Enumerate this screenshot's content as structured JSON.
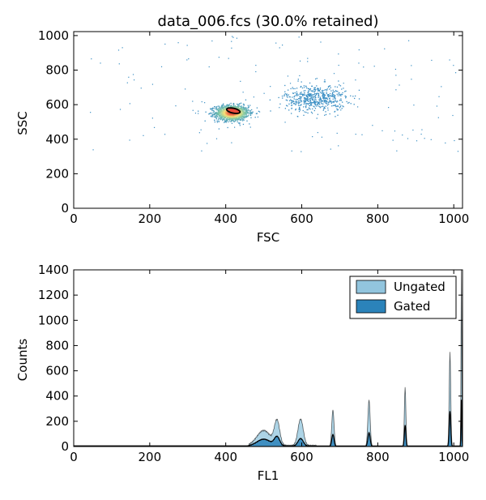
{
  "colors": {
    "scatter_points": "#3b8fc4",
    "density_high": "#e84a3a",
    "density_mid": "#f8e27a",
    "density_low": "#7ec8a4",
    "ungated_fill": "#92c5de",
    "gated_fill": "#2b83ba",
    "gate_outline": "#000000"
  },
  "chart_data": [
    {
      "type": "scatter",
      "title": "data_006.fcs (30.0% retained)",
      "xlabel": "FSC",
      "ylabel": "SSC",
      "xlim": [
        0,
        1023
      ],
      "ylim": [
        0,
        1023
      ],
      "xticks": [
        0,
        200,
        400,
        600,
        800,
        1000
      ],
      "yticks": [
        0,
        200,
        400,
        600,
        800,
        1000
      ],
      "grid": false,
      "clusters": [
        {
          "center_x": 415,
          "center_y": 555,
          "spread_x": 22,
          "spread_y": 22,
          "points": 1400,
          "colored_by": "density"
        },
        {
          "center_x": 635,
          "center_y": 640,
          "spread_x": 40,
          "spread_y": 40,
          "points": 550,
          "colored_by": "none"
        }
      ],
      "gate": {
        "shape": "ellipse",
        "center_x": 420,
        "center_y": 565,
        "rx": 18,
        "ry": 14
      }
    },
    {
      "type": "histogram",
      "xlabel": "FL1",
      "ylabel": "Counts",
      "xlim": [
        0,
        1023
      ],
      "ylim": [
        0,
        1400
      ],
      "xticks": [
        0,
        200,
        400,
        600,
        800,
        1000
      ],
      "yticks": [
        0,
        200,
        400,
        600,
        800,
        1000,
        1200,
        1400
      ],
      "grid": false,
      "legend_position": "top-right",
      "series": [
        {
          "name": "Ungated",
          "peaks": [
            {
              "x": 500,
              "height": 120,
              "width": 18
            },
            {
              "x": 535,
              "height": 190,
              "width": 7
            },
            {
              "x": 597,
              "height": 210,
              "width": 7
            },
            {
              "x": 682,
              "height": 290,
              "width": 3
            },
            {
              "x": 777,
              "height": 370,
              "width": 3
            },
            {
              "x": 872,
              "height": 470,
              "width": 2
            },
            {
              "x": 990,
              "height": 750,
              "width": 2
            },
            {
              "x": 1020,
              "height": 1400,
              "width": 1
            }
          ]
        },
        {
          "name": "Gated",
          "peaks": [
            {
              "x": 500,
              "height": 55,
              "width": 18
            },
            {
              "x": 535,
              "height": 70,
              "width": 7
            },
            {
              "x": 597,
              "height": 60,
              "width": 7
            },
            {
              "x": 682,
              "height": 95,
              "width": 3
            },
            {
              "x": 777,
              "height": 110,
              "width": 3
            },
            {
              "x": 872,
              "height": 170,
              "width": 2
            },
            {
              "x": 990,
              "height": 280,
              "width": 2
            },
            {
              "x": 1020,
              "height": 370,
              "width": 1
            }
          ]
        }
      ]
    }
  ]
}
